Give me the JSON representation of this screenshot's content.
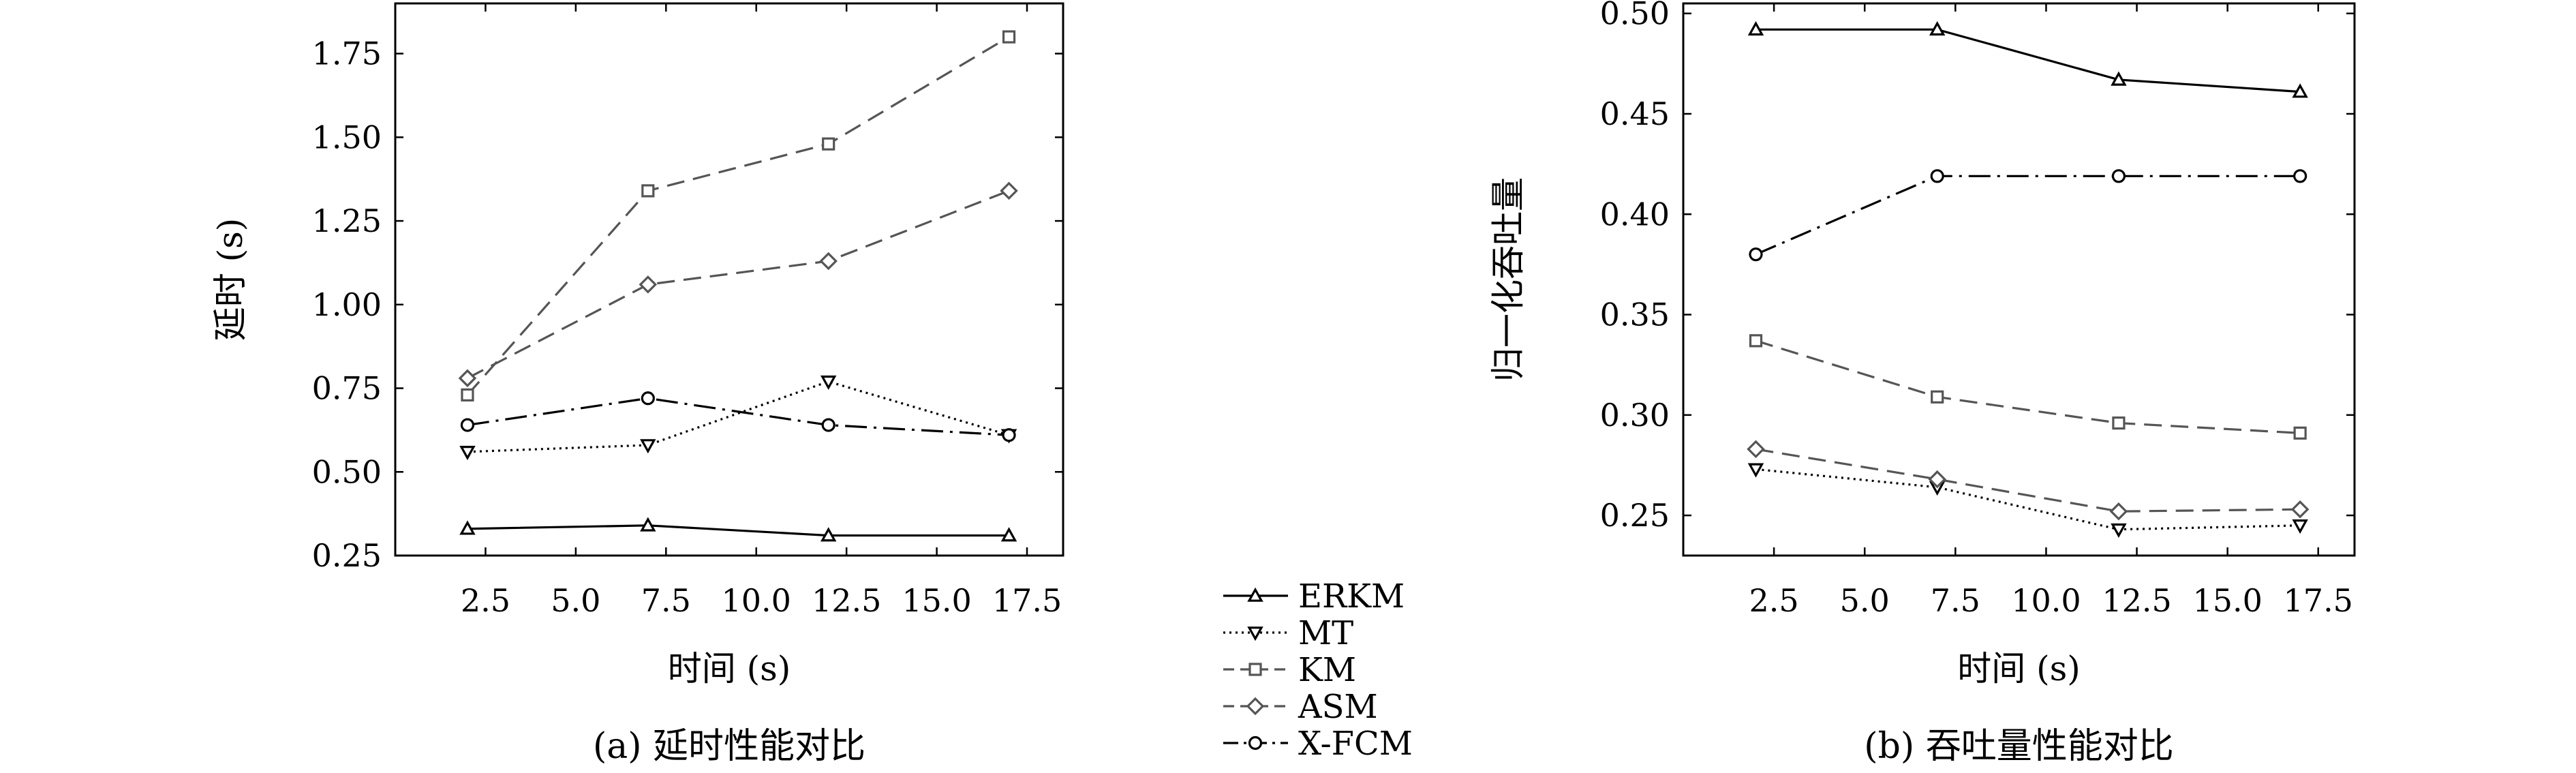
{
  "chart_data": [
    {
      "type": "line",
      "caption": "(a) 延时性能对比",
      "xlabel": "时间 (s)",
      "ylabel": "延时 (s)",
      "x": [
        2,
        7,
        12,
        17
      ],
      "xlim": [
        0,
        18.5
      ],
      "ylim": [
        0.25,
        1.9
      ],
      "xticks": [
        2.5,
        5.0,
        7.5,
        10.0,
        12.5,
        15.0,
        17.5
      ],
      "xtick_labels": [
        "2.5",
        "5.0",
        "7.5",
        "10.0",
        "12.5",
        "15.0",
        "17.5"
      ],
      "yticks": [
        0.25,
        0.5,
        0.75,
        1.0,
        1.25,
        1.5,
        1.75
      ],
      "ytick_labels": [
        "0.25",
        "0.50",
        "0.75",
        "1.00",
        "1.25",
        "1.50",
        "1.75"
      ],
      "series": [
        {
          "name": "ERKM",
          "values": [
            0.33,
            0.34,
            0.31,
            0.31
          ]
        },
        {
          "name": "MT",
          "values": [
            0.56,
            0.58,
            0.77,
            0.61
          ]
        },
        {
          "name": "KM",
          "values": [
            0.73,
            1.34,
            1.48,
            1.8
          ]
        },
        {
          "name": "ASM",
          "values": [
            0.78,
            1.06,
            1.13,
            1.34
          ]
        },
        {
          "name": "X-FCM",
          "values": [
            0.64,
            0.72,
            0.64,
            0.61
          ]
        }
      ]
    },
    {
      "type": "line",
      "caption": "(b) 吞吐量性能对比",
      "xlabel": "时间 (s)",
      "ylabel": "归一化吞吐量",
      "x": [
        2,
        7,
        12,
        17
      ],
      "xlim": [
        0,
        18.5
      ],
      "ylim": [
        0.23,
        0.505
      ],
      "xticks": [
        2.5,
        5.0,
        7.5,
        10.0,
        12.5,
        15.0,
        17.5
      ],
      "xtick_labels": [
        "2.5",
        "5.0",
        "7.5",
        "10.0",
        "12.5",
        "15.0",
        "17.5"
      ],
      "yticks": [
        0.25,
        0.3,
        0.35,
        0.4,
        0.45,
        0.5
      ],
      "ytick_labels": [
        "0.25",
        "0.30",
        "0.35",
        "0.40",
        "0.45",
        "0.50"
      ],
      "series": [
        {
          "name": "ERKM",
          "values": [
            0.492,
            0.492,
            0.467,
            0.461
          ]
        },
        {
          "name": "MT",
          "values": [
            0.273,
            0.264,
            0.243,
            0.245
          ]
        },
        {
          "name": "KM",
          "values": [
            0.337,
            0.309,
            0.296,
            0.291
          ]
        },
        {
          "name": "ASM",
          "values": [
            0.283,
            0.268,
            0.252,
            0.253
          ]
        },
        {
          "name": "X-FCM",
          "values": [
            0.38,
            0.419,
            0.419,
            0.419
          ]
        }
      ]
    }
  ],
  "legend": {
    "placement": "center",
    "entries": [
      {
        "name": "ERKM",
        "marker": "triangle-up",
        "line": "solid",
        "color": "#000000"
      },
      {
        "name": "MT",
        "marker": "triangle-down",
        "line": "dotted",
        "color": "#000000"
      },
      {
        "name": "KM",
        "marker": "square",
        "line": "dashed",
        "color": "#555555"
      },
      {
        "name": "ASM",
        "marker": "diamond",
        "line": "dashed",
        "color": "#555555"
      },
      {
        "name": "X-FCM",
        "marker": "circle",
        "line": "dash-dot",
        "color": "#000000"
      }
    ]
  }
}
